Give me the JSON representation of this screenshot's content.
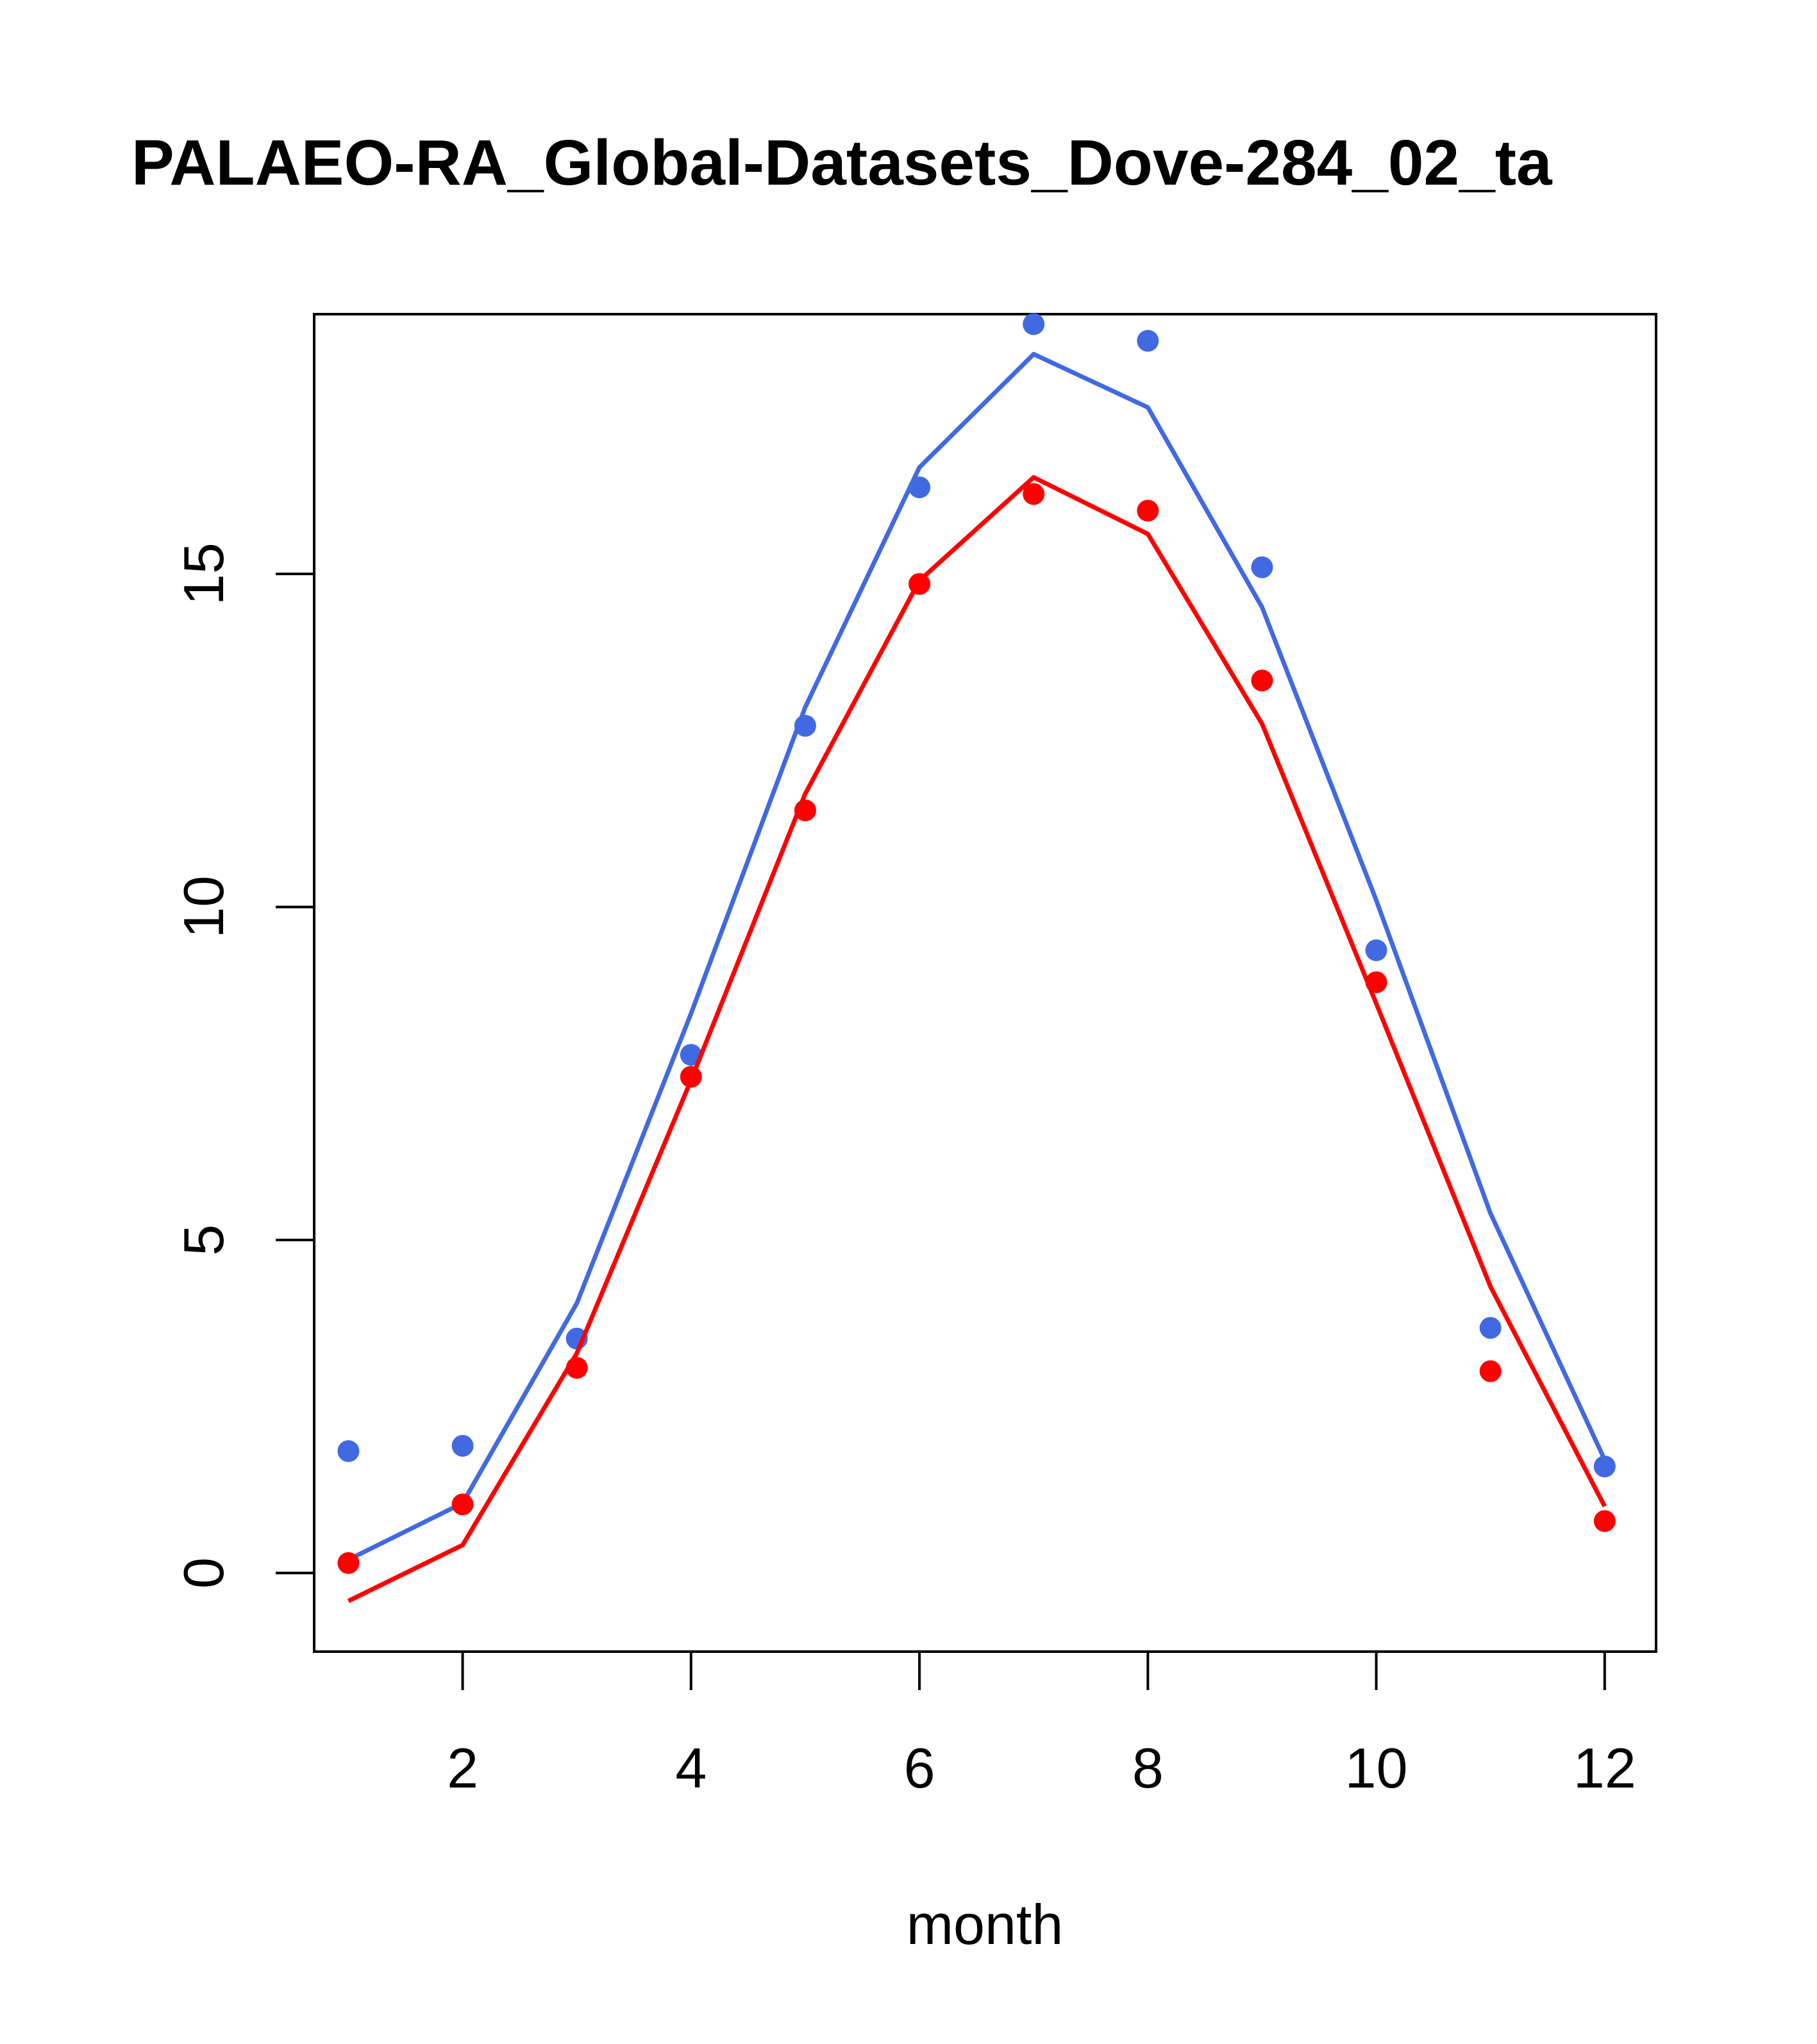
{
  "chart_data": {
    "type": "line",
    "title": "PALAEO-RA_Global-Datasets_Dove-284_02_ta",
    "xlabel": "month",
    "ylabel": "",
    "xlim": [
      0.7,
      12.45
    ],
    "ylim": [
      -1.18,
      18.9
    ],
    "x_ticks": [
      2,
      4,
      6,
      8,
      10,
      12
    ],
    "y_ticks": [
      0,
      5,
      10,
      15
    ],
    "grid": false,
    "x": [
      1,
      2,
      3,
      4,
      5,
      6,
      7,
      8,
      9,
      10,
      11,
      12
    ],
    "series": [
      {
        "color": "#4169E1",
        "line": [
          0.2,
          1.05,
          4.05,
          8.4,
          13.0,
          16.6,
          18.3,
          17.5,
          14.5,
          10.1,
          5.4,
          1.7
        ],
        "points": [
          1.83,
          1.91,
          3.52,
          7.78,
          12.72,
          16.3,
          18.75,
          18.5,
          15.1,
          9.35,
          3.68,
          1.6
        ]
      },
      {
        "color": "#FF0000",
        "line": [
          -0.42,
          0.42,
          3.3,
          7.4,
          11.7,
          14.9,
          16.45,
          15.6,
          12.75,
          8.55,
          4.3,
          1.0
        ],
        "points": [
          0.15,
          1.03,
          3.08,
          7.45,
          11.45,
          14.85,
          16.2,
          15.95,
          13.4,
          8.87,
          3.03,
          0.78
        ]
      }
    ]
  }
}
